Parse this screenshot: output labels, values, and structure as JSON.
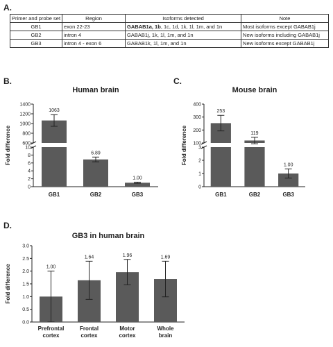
{
  "panels": {
    "a": "A.",
    "b": "B.",
    "c": "C.",
    "d": "D."
  },
  "table": {
    "headers": [
      "Primer and probe set",
      "Region",
      "Isoforms detected",
      "Note"
    ],
    "rows": [
      {
        "set": "GB1",
        "region": "exon 22-23",
        "isoforms_bold": "GABAB1a, 1b",
        "isoforms_rest": ", 1c, 1d, 1k, 1l, 1m, and 1n",
        "note": "Most isoforms except GABAB1j"
      },
      {
        "set": "GB2",
        "region": "intron 4",
        "isoforms_bold": "",
        "isoforms_rest": "GABAB1j, 1k, 1l, 1m, and 1n",
        "note": "New isoforms including GABAB1j"
      },
      {
        "set": "GB3",
        "region": "intron 4 - exon 6",
        "isoforms_bold": "",
        "isoforms_rest": "GABAB1k, 1l, 1m, and 1n",
        "note": "New isoforms except GABAB1j"
      }
    ]
  },
  "colors": {
    "bar": "#5a5a5a",
    "error": "#222222",
    "axis": "#222222"
  },
  "chart_data": [
    {
      "type": "bar",
      "title": "Human brain",
      "ylabel": "Fold difference",
      "categories": [
        "GB1",
        "GB2",
        "GB3"
      ],
      "values": [
        1063,
        6.89,
        1.0
      ],
      "value_labels": [
        "1063",
        "6.89",
        "1.00"
      ],
      "errors": [
        120,
        0.6,
        0.15
      ],
      "axis_break": true,
      "ylim_lower": [
        0,
        10
      ],
      "ylim_upper": [
        600,
        1400
      ],
      "yticks_lower": [
        "0",
        "2",
        "4",
        "6",
        "8",
        "10"
      ],
      "yticks_upper": [
        "600",
        "800",
        "1000",
        "1200",
        "1400"
      ]
    },
    {
      "type": "bar",
      "title": "Mouse brain",
      "ylabel": "Fold difference",
      "categories": [
        "GB1",
        "GB2",
        "GB3"
      ],
      "values": [
        253,
        119,
        1.0
      ],
      "value_labels": [
        "253",
        "119",
        "1.00"
      ],
      "errors": [
        60,
        25,
        0.35
      ],
      "axis_break": true,
      "ylim_lower": [
        0,
        3
      ],
      "ylim_upper": [
        100,
        400
      ],
      "yticks_lower": [
        "0",
        "1",
        "2",
        "3"
      ],
      "yticks_upper": [
        "100",
        "200",
        "300",
        "400"
      ]
    },
    {
      "type": "bar",
      "title": "GB3 in human brain",
      "ylabel": "Fold difference",
      "categories": [
        "Prefrontal cortex",
        "Frontal cortex",
        "Motor cortex",
        "Whole brain"
      ],
      "category_lines": [
        [
          "Prefrontal",
          "cortex"
        ],
        [
          "Frontal",
          "cortex"
        ],
        [
          "Motor",
          "cortex"
        ],
        [
          "Whole",
          "brain"
        ]
      ],
      "values": [
        1.0,
        1.64,
        1.96,
        1.69
      ],
      "value_labels": [
        "1.00",
        "1.64",
        "1.96",
        "1.69"
      ],
      "errors": [
        1.0,
        0.75,
        0.5,
        0.7
      ],
      "ylim": [
        0,
        3.0
      ],
      "yticks": [
        "0.0",
        "0.5",
        "1.0",
        "1.5",
        "2.0",
        "2.5",
        "3.0"
      ]
    }
  ]
}
